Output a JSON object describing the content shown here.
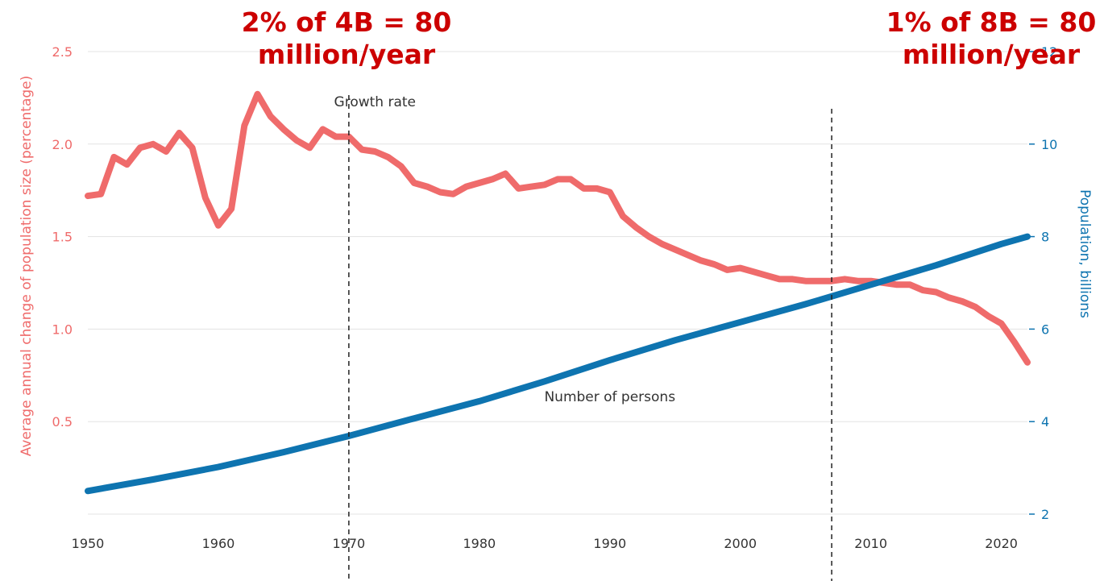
{
  "callouts": {
    "left_line1": "2% of 4B = 80",
    "left_line2": "million/year",
    "right_line1": "1% of 8B = 80",
    "right_line2": "million/year"
  },
  "colors": {
    "growth": "#ef6b6b",
    "population": "#0e74b0",
    "callout": "#cc0000",
    "marker": "#222222"
  },
  "chart_data": {
    "type": "line",
    "xlim": [
      1950,
      2022
    ],
    "x_ticks": [
      1950,
      1960,
      1970,
      1980,
      1990,
      2000,
      2010,
      2020
    ],
    "left_axis": {
      "label": "Average annual change of population size (percentage)",
      "ylim": [
        0.0,
        2.5
      ],
      "ticks": [
        "2.5",
        "2.0",
        "1.5",
        "1.0",
        "0.5"
      ]
    },
    "right_axis": {
      "label": "Population, billions",
      "ylim": [
        2,
        12
      ],
      "ticks": [
        "12",
        "10",
        "8",
        "6",
        "4",
        "2"
      ]
    },
    "grid": true,
    "series": [
      {
        "name": "Growth rate",
        "axis": "left",
        "x": [
          1950,
          1951,
          1952,
          1953,
          1954,
          1955,
          1956,
          1957,
          1958,
          1959,
          1960,
          1961,
          1962,
          1963,
          1964,
          1965,
          1966,
          1967,
          1968,
          1969,
          1970,
          1971,
          1972,
          1973,
          1974,
          1975,
          1976,
          1977,
          1978,
          1979,
          1980,
          1981,
          1982,
          1983,
          1984,
          1985,
          1986,
          1987,
          1988,
          1989,
          1990,
          1991,
          1992,
          1993,
          1994,
          1995,
          1996,
          1997,
          1998,
          1999,
          2000,
          2001,
          2002,
          2003,
          2004,
          2005,
          2006,
          2007,
          2008,
          2009,
          2010,
          2011,
          2012,
          2013,
          2014,
          2015,
          2016,
          2017,
          2018,
          2019,
          2020,
          2021,
          2022
        ],
        "y": [
          1.72,
          1.73,
          1.93,
          1.89,
          1.98,
          2.0,
          1.96,
          2.06,
          1.98,
          1.71,
          1.56,
          1.65,
          2.1,
          2.27,
          2.15,
          2.08,
          2.02,
          1.98,
          2.08,
          2.04,
          2.04,
          1.97,
          1.96,
          1.93,
          1.88,
          1.79,
          1.77,
          1.74,
          1.73,
          1.77,
          1.79,
          1.81,
          1.84,
          1.76,
          1.77,
          1.78,
          1.81,
          1.81,
          1.76,
          1.76,
          1.74,
          1.61,
          1.55,
          1.5,
          1.46,
          1.43,
          1.4,
          1.37,
          1.35,
          1.32,
          1.33,
          1.31,
          1.29,
          1.27,
          1.27,
          1.26,
          1.26,
          1.26,
          1.27,
          1.26,
          1.26,
          1.25,
          1.24,
          1.24,
          1.21,
          1.2,
          1.17,
          1.15,
          1.12,
          1.07,
          1.03,
          0.93,
          0.82
        ]
      },
      {
        "name": "Number of persons",
        "axis": "right",
        "x": [
          1950,
          1955,
          1960,
          1965,
          1970,
          1975,
          1980,
          1985,
          1990,
          1995,
          2000,
          2005,
          2010,
          2015,
          2020,
          2022
        ],
        "y": [
          2.5,
          2.75,
          3.02,
          3.34,
          3.69,
          4.07,
          4.44,
          4.87,
          5.33,
          5.76,
          6.15,
          6.54,
          6.96,
          7.38,
          7.84,
          8.0
        ]
      }
    ],
    "markers": [
      1970,
      2007
    ]
  }
}
